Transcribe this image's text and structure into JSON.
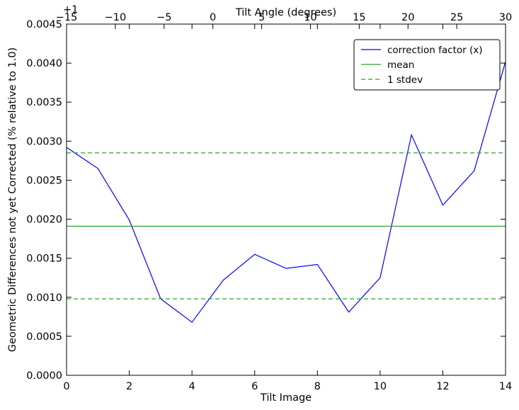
{
  "chart_data": {
    "type": "line",
    "xlabel": "Tilt Image",
    "ylabel": "Geometric Differences not yet Corrected (% relative to 1.0)",
    "top_xlabel": "Tilt Angle (degrees)",
    "xlim": [
      0,
      14
    ],
    "ylim": [
      0,
      0.0045
    ],
    "top_xlim": [
      -15,
      30
    ],
    "x_ticks": [
      "0",
      "2",
      "4",
      "6",
      "8",
      "10",
      "12",
      "14"
    ],
    "y_ticks": [
      "0.0000",
      "0.0005",
      "0.0010",
      "0.0015",
      "0.0020",
      "0.0025",
      "0.0030",
      "0.0035",
      "0.0040",
      "0.0045"
    ],
    "top_ticks": [
      "−15",
      "−10",
      "−5",
      "0",
      "5",
      "10",
      "15",
      "20",
      "25",
      "30"
    ],
    "top_offset_label": "+1",
    "legend_position": "top-right",
    "grid": false,
    "series": [
      {
        "name": "correction factor (x)",
        "color": "#0000ff",
        "style": "solid",
        "x": [
          0,
          1,
          2,
          3,
          4,
          5,
          6,
          7,
          8,
          9,
          10,
          11,
          12,
          13,
          14
        ],
        "y": [
          0.00292,
          0.00265,
          0.00199,
          0.00098,
          0.00068,
          0.00122,
          0.00155,
          0.00137,
          0.00142,
          0.00081,
          0.00125,
          0.00308,
          0.00218,
          0.00262,
          0.00402
        ]
      },
      {
        "name": "mean",
        "color": "#2ca02c",
        "style": "solid",
        "x": [
          0,
          14
        ],
        "y": [
          0.00191,
          0.00191
        ]
      },
      {
        "name": "1 stdev",
        "color": "#2ca02c",
        "style": "dashed",
        "x": [
          0,
          14
        ],
        "y": [
          0.00285,
          0.00285
        ]
      },
      {
        "name": "",
        "color": "#2ca02c",
        "style": "dashed",
        "x": [
          0,
          14
        ],
        "y": [
          0.00098,
          0.00098
        ]
      }
    ]
  }
}
